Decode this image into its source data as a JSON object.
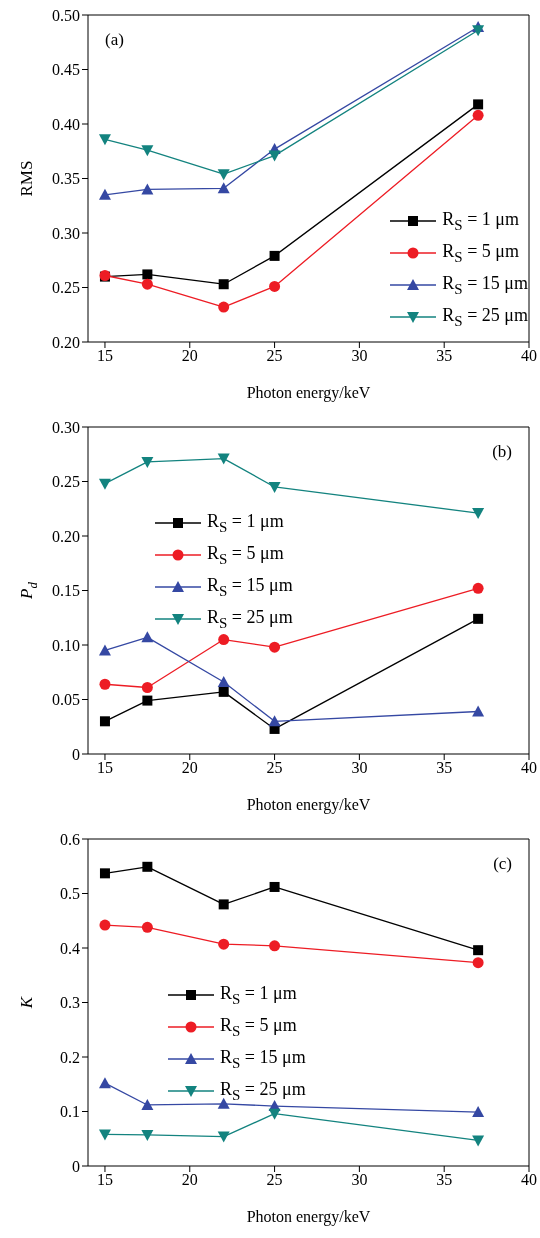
{
  "chart_data": [
    {
      "type": "line",
      "xlabel": "Photon energy/keV",
      "ylabel": "RMS",
      "annotations": [
        "(a)"
      ],
      "x": [
        15,
        17.5,
        22,
        25,
        37
      ],
      "xlim": [
        14,
        40
      ],
      "xticks": [
        15,
        20,
        25,
        30,
        35,
        40
      ],
      "ylim": [
        0.2,
        0.5
      ],
      "yticks": [
        {
          "value": 0.2,
          "label": "0.20"
        },
        {
          "value": 0.25,
          "label": "0.25"
        },
        {
          "value": 0.3,
          "label": "0.30"
        },
        {
          "value": 0.35,
          "label": "0.35"
        },
        {
          "value": 0.4,
          "label": "0.40"
        },
        {
          "value": 0.45,
          "label": "0.45"
        },
        {
          "value": 0.5,
          "label": "0.50"
        }
      ],
      "legend": "bottom right",
      "series": [
        {
          "name": "R$_{S}$ = 1 μm",
          "color": "#000000",
          "marker": "square",
          "values": [
            0.26,
            0.262,
            0.253,
            0.279,
            0.418
          ]
        },
        {
          "name": "R$_{S}$ = 5 μm",
          "color": "#ed1c24",
          "marker": "circle",
          "values": [
            0.261,
            0.253,
            0.232,
            0.251,
            0.408
          ]
        },
        {
          "name": "R$_{S}$ = 15 μm",
          "color": "#3548a3",
          "marker": "triangle",
          "values": [
            0.335,
            0.34,
            0.341,
            0.377,
            0.489
          ]
        },
        {
          "name": "R$_{S}$ = 25 μm",
          "color": "#13837f",
          "marker": "triangle-down",
          "values": [
            0.386,
            0.376,
            0.354,
            0.371,
            0.486
          ]
        }
      ]
    },
    {
      "type": "line",
      "xlabel": "Photon energy/keV",
      "ylabel": "P$_{d}$",
      "annotations": [
        "(b)"
      ],
      "x": [
        15,
        17.5,
        22,
        25,
        37
      ],
      "xlim": [
        14,
        40
      ],
      "xticks": [
        15,
        20,
        25,
        30,
        35,
        40
      ],
      "ylim": [
        0,
        0.3
      ],
      "yticks": [
        0,
        0.05,
        {
          "value": 0.1,
          "label": "0.10"
        },
        0.15,
        {
          "value": 0.2,
          "label": "0.20"
        },
        0.25,
        {
          "value": 0.3,
          "label": "0.30"
        }
      ],
      "legend": "top left",
      "series": [
        {
          "name": "R$_{S}$ = 1 μm",
          "color": "#000000",
          "marker": "square",
          "values": [
            0.03,
            0.049,
            0.057,
            0.023,
            0.124
          ]
        },
        {
          "name": "R$_{S}$ = 5 μm",
          "color": "#ed1c24",
          "marker": "circle",
          "values": [
            0.064,
            0.061,
            0.105,
            0.098,
            0.152
          ]
        },
        {
          "name": "R$_{S}$ = 15 μm",
          "color": "#3548a3",
          "marker": "triangle",
          "values": [
            0.095,
            0.107,
            0.066,
            0.03,
            0.039
          ]
        },
        {
          "name": "R$_{S}$ = 25 μm",
          "color": "#13837f",
          "marker": "triangle-down",
          "values": [
            0.248,
            0.268,
            0.271,
            0.245,
            0.221
          ]
        }
      ]
    },
    {
      "type": "line",
      "xlabel": "Photon energy/keV",
      "ylabel": "K",
      "annotations": [
        "(c)"
      ],
      "x": [
        15,
        17.5,
        22,
        25,
        37
      ],
      "xlim": [
        14,
        40
      ],
      "xticks": [
        15,
        20,
        25,
        30,
        35,
        40
      ],
      "ylim": [
        0,
        0.6
      ],
      "yticks": [
        0,
        0.1,
        0.2,
        0.3,
        0.4,
        0.5,
        0.6
      ],
      "legend": "center left",
      "series": [
        {
          "name": "R$_{S}$ = 1 μm",
          "color": "#000000",
          "marker": "square",
          "values": [
            0.537,
            0.549,
            0.48,
            0.512,
            0.396
          ]
        },
        {
          "name": "R$_{S}$ = 5 μm",
          "color": "#ed1c24",
          "marker": "circle",
          "values": [
            0.442,
            0.438,
            0.407,
            0.404,
            0.373
          ]
        },
        {
          "name": "R$_{S}$ = 15 μm",
          "color": "#3548a3",
          "marker": "triangle",
          "values": [
            0.152,
            0.112,
            0.114,
            0.11,
            0.099
          ]
        },
        {
          "name": "R$_{S}$ = 25 μm",
          "color": "#13837f",
          "marker": "triangle-down",
          "values": [
            0.058,
            0.057,
            0.054,
            0.096,
            0.047
          ]
        }
      ]
    }
  ]
}
